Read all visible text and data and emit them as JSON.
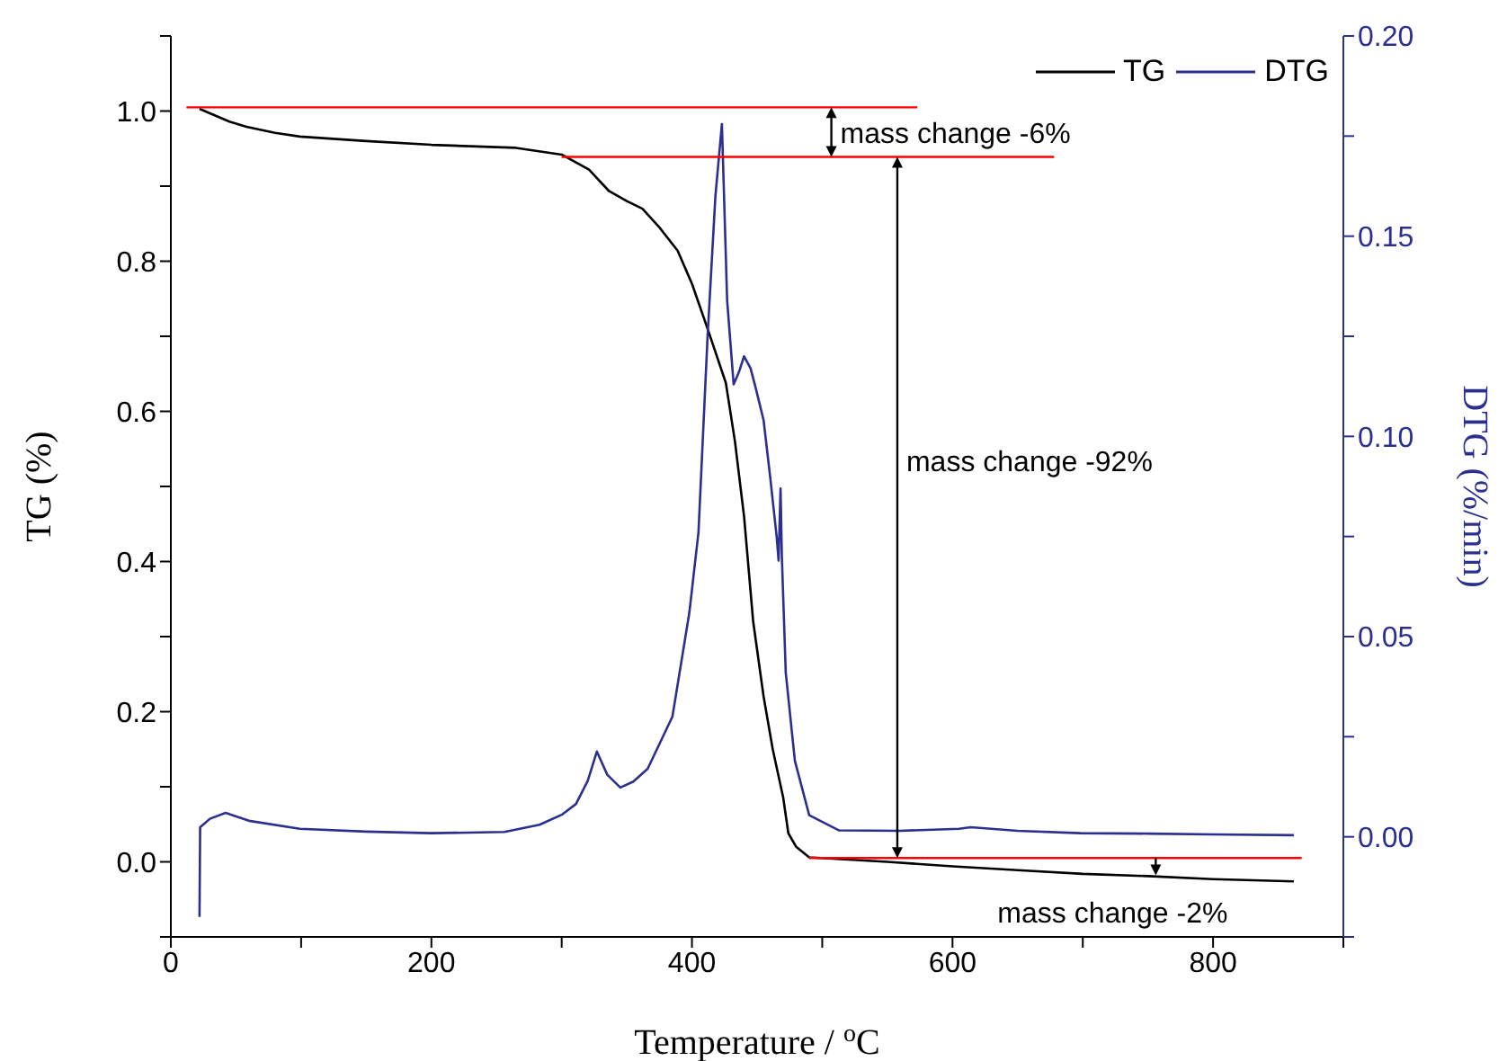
{
  "chart_data": {
    "type": "line",
    "xlabel": "Temperature / $^{o}$C",
    "ylabel": "TG (%)",
    "y2label": "DTG (%/min)",
    "xlim": [
      0,
      900
    ],
    "xticks": [
      0,
      {
        "value": 100,
        "label": null
      },
      200,
      {
        "value": 300,
        "label": null
      },
      400,
      {
        "value": 500,
        "label": null
      },
      600,
      {
        "value": 700,
        "label": null
      },
      800,
      {
        "value": 900,
        "label": null
      }
    ],
    "ylim": [
      -0.1,
      1.1
    ],
    "yticks": [
      {
        "value": -0.1,
        "label": null
      },
      {
        "value": 0,
        "label": "0.0"
      },
      {
        "value": 0.1,
        "label": null
      },
      {
        "value": 0.2,
        "label": "0.2"
      },
      {
        "value": 0.3,
        "label": null
      },
      {
        "value": 0.4,
        "label": "0.4"
      },
      {
        "value": 0.5,
        "label": null
      },
      {
        "value": 0.6,
        "label": "0.6"
      },
      {
        "value": 0.7,
        "label": null
      },
      {
        "value": 0.8,
        "label": "0.8"
      },
      {
        "value": 0.9,
        "label": null
      },
      {
        "value": 1.0,
        "label": "1.0"
      },
      {
        "value": 1.1,
        "label": null
      }
    ],
    "y2lim": [
      -0.025,
      0.2
    ],
    "y2ticks": [
      {
        "value": -0.025,
        "label": null
      },
      {
        "value": 0,
        "label": "0.00"
      },
      {
        "value": 0.025,
        "label": null
      },
      {
        "value": 0.05,
        "label": "0.05"
      },
      {
        "value": 0.075,
        "label": null
      },
      {
        "value": 0.1,
        "label": "0.10"
      },
      {
        "value": 0.125,
        "label": null
      },
      {
        "value": 0.15,
        "label": "0.15"
      },
      {
        "value": 0.175,
        "label": null
      },
      {
        "value": 0.2,
        "label": "0.20"
      }
    ],
    "legend": "top right",
    "series": [
      {
        "name": "TG",
        "color": "#000000",
        "x": [
          22,
          30,
          45,
          58,
          80,
          99,
          150,
          200,
          265,
          300,
          321,
          336,
          350,
          362,
          375,
          389,
          400,
          412,
          426,
          433,
          440,
          447,
          455,
          462,
          470,
          474,
          480,
          490,
          520,
          550,
          600,
          650,
          700,
          750,
          800,
          862
        ],
        "values": [
          1.003,
          0.997,
          0.986,
          0.979,
          0.971,
          0.966,
          0.96,
          0.955,
          0.951,
          0.942,
          0.922,
          0.894,
          0.88,
          0.87,
          0.845,
          0.814,
          0.77,
          0.71,
          0.638,
          0.56,
          0.46,
          0.32,
          0.22,
          0.15,
          0.086,
          0.038,
          0.02,
          0.006,
          0.003,
          0.0,
          -0.006,
          -0.011,
          -0.016,
          -0.019,
          -0.023,
          -0.026
        ]
      },
      {
        "name": "DTG",
        "axis": "y2",
        "color": "#2b2f8f",
        "x": [
          22,
          22.5,
          30,
          42,
          60,
          99,
          150,
          200,
          256,
          283,
          300,
          311,
          320,
          327,
          335,
          345,
          355,
          366,
          385,
          398,
          405,
          412,
          418,
          423,
          427,
          432,
          436,
          440,
          445,
          449,
          455,
          460,
          465,
          466.5,
          468,
          469,
          472,
          479,
          490,
          513,
          560,
          605,
          614,
          650,
          698,
          750,
          800,
          862
        ],
        "values": [
          -0.02,
          0.0024,
          0.0045,
          0.006,
          0.004,
          0.002,
          0.0013,
          0.0009,
          0.0012,
          0.003,
          0.0055,
          0.0082,
          0.014,
          0.0213,
          0.0155,
          0.0123,
          0.0138,
          0.017,
          0.03,
          0.056,
          0.076,
          0.125,
          0.16,
          0.178,
          0.134,
          0.113,
          0.116,
          0.12,
          0.117,
          0.112,
          0.104,
          0.09,
          0.075,
          0.069,
          0.087,
          0.07,
          0.041,
          0.019,
          0.0054,
          0.0016,
          0.0015,
          0.002,
          0.0024,
          0.0015,
          0.0009,
          0.0008,
          0.0006,
          0.0004
        ]
      },
      {
        "color": "#ff0000",
        "x": [
          12,
          573
        ],
        "values": [
          1.005,
          1.005
        ]
      },
      {
        "color": "#ff0000",
        "x": [
          300,
          678
        ],
        "values": [
          0.939,
          0.939
        ]
      },
      {
        "color": "#ff0000",
        "x": [
          490,
          868
        ],
        "values": [
          0.005,
          0.005
        ]
      }
    ],
    "annotations": [
      {
        "text": "mass change -6%",
        "x": 507,
        "y": 0.939
      },
      "mass change -92%",
      {
        "text": "mass change -2%",
        "x": 756,
        "y": -0.018
      }
    ]
  }
}
